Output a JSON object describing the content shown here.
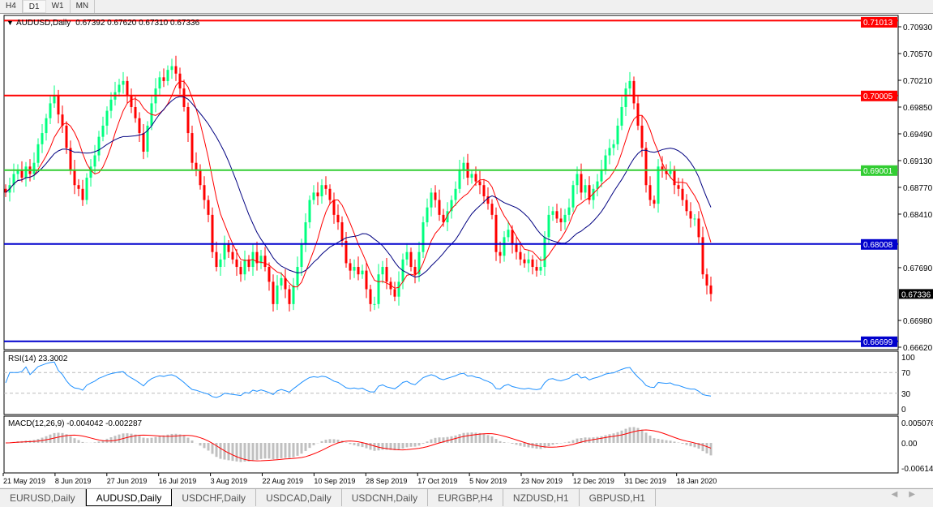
{
  "timeframes": [
    "H4",
    "D1",
    "W1",
    "MN"
  ],
  "active_timeframe": "D1",
  "header": {
    "symbol": "AUDUSD,Daily",
    "ohlc": "0.67392 0.67620 0.67310 0.67336"
  },
  "tabs": [
    "EURUSD,Daily",
    "AUDUSD,Daily",
    "USDCHF,Daily",
    "USDCAD,Daily",
    "USDCNH,Daily",
    "EURGBP,H4",
    "NZDUSD,H1",
    "GBPUSD,H1"
  ],
  "active_tab": "AUDUSD,Daily",
  "colors": {
    "bull": "#00ff7f",
    "bear": "#ff0000",
    "ma_fast": "#ff0000",
    "ma_slow": "#000080",
    "rsi": "#1e90ff",
    "macd_hist": "#c0c0c0",
    "macd_signal": "#ff0000"
  },
  "chart_data": [
    {
      "type": "candlestick",
      "title": "AUDUSD,Daily",
      "ylim": [
        0.6662,
        0.7101
      ],
      "y_ticks": [
        "0.70930",
        "0.70570",
        "0.70210",
        "0.69850",
        "0.69490",
        "0.69130",
        "0.68770",
        "0.68410",
        "0.67690",
        "0.66980",
        "0.66620"
      ],
      "x_ticks": [
        "21 May 2019",
        "8 Jun 2019",
        "27 Jun 2019",
        "16 Jul 2019",
        "3 Aug 2019",
        "22 Aug 2019",
        "10 Sep 2019",
        "28 Sep 2019",
        "17 Oct 2019",
        "5 Nov 2019",
        "23 Nov 2019",
        "12 Dec 2019",
        "31 Dec 2019",
        "18 Jan 2020"
      ],
      "current_price": "0.67336",
      "levels": [
        {
          "value": "0.71013",
          "color": "#ff0000"
        },
        {
          "value": "0.70005",
          "color": "#ff0000"
        },
        {
          "value": "0.69001",
          "color": "#32cd32"
        },
        {
          "value": "0.68008",
          "color": "#0000cd"
        },
        {
          "value": "0.66699",
          "color": "#0000cd"
        }
      ],
      "closes": [
        0.687,
        0.688,
        0.6895,
        0.69,
        0.689,
        0.6905,
        0.6895,
        0.691,
        0.6935,
        0.695,
        0.697,
        0.699,
        0.7,
        0.6975,
        0.696,
        0.693,
        0.69,
        0.688,
        0.6875,
        0.686,
        0.689,
        0.6905,
        0.692,
        0.6945,
        0.696,
        0.698,
        0.6995,
        0.7005,
        0.7015,
        0.702,
        0.7,
        0.6985,
        0.697,
        0.695,
        0.6925,
        0.696,
        0.699,
        0.701,
        0.7025,
        0.702,
        0.7035,
        0.704,
        0.703,
        0.701,
        0.6985,
        0.695,
        0.691,
        0.69,
        0.688,
        0.686,
        0.684,
        0.679,
        0.677,
        0.678,
        0.68,
        0.679,
        0.678,
        0.677,
        0.676,
        0.678,
        0.677,
        0.679,
        0.6775,
        0.6785,
        0.677,
        0.675,
        0.672,
        0.6745,
        0.6755,
        0.674,
        0.672,
        0.6745,
        0.677,
        0.68,
        0.683,
        0.686,
        0.687,
        0.6865,
        0.688,
        0.6875,
        0.686,
        0.684,
        0.683,
        0.6805,
        0.6775,
        0.6765,
        0.677,
        0.676,
        0.6765,
        0.674,
        0.672,
        0.672,
        0.676,
        0.677,
        0.675,
        0.674,
        0.673,
        0.675,
        0.678,
        0.679,
        0.677,
        0.676,
        0.679,
        0.683,
        0.685,
        0.687,
        0.686,
        0.684,
        0.683,
        0.6845,
        0.686,
        0.6875,
        0.69,
        0.691,
        0.689,
        0.6895,
        0.6885,
        0.688,
        0.6865,
        0.6855,
        0.684,
        0.679,
        0.6785,
        0.681,
        0.682,
        0.68,
        0.679,
        0.678,
        0.6775,
        0.678,
        0.677,
        0.6765,
        0.677,
        0.681,
        0.684,
        0.6845,
        0.6835,
        0.683,
        0.684,
        0.685,
        0.688,
        0.6895,
        0.687,
        0.688,
        0.686,
        0.6875,
        0.6885,
        0.69,
        0.692,
        0.693,
        0.6935,
        0.696,
        0.6985,
        0.701,
        0.702,
        0.699,
        0.696,
        0.693,
        0.688,
        0.686,
        0.6855,
        0.6905,
        0.69,
        0.6895,
        0.69,
        0.688,
        0.6875,
        0.686,
        0.6845,
        0.6835,
        0.6835,
        0.681,
        0.676,
        0.6745,
        0.67336
      ]
    },
    {
      "type": "line",
      "title": "RSI(14) 23.3002",
      "ylim": [
        0,
        100
      ],
      "y_ticks": [
        "100",
        "70",
        "30",
        "0"
      ],
      "levels": [
        70,
        30
      ]
    },
    {
      "type": "bar",
      "title": "MACD(12,26,9) -0.004042 -0.002287",
      "ylim": [
        -0.006148,
        0.005076
      ],
      "y_ticks": [
        "0.005076",
        "0.00",
        "-0.006148"
      ]
    }
  ]
}
